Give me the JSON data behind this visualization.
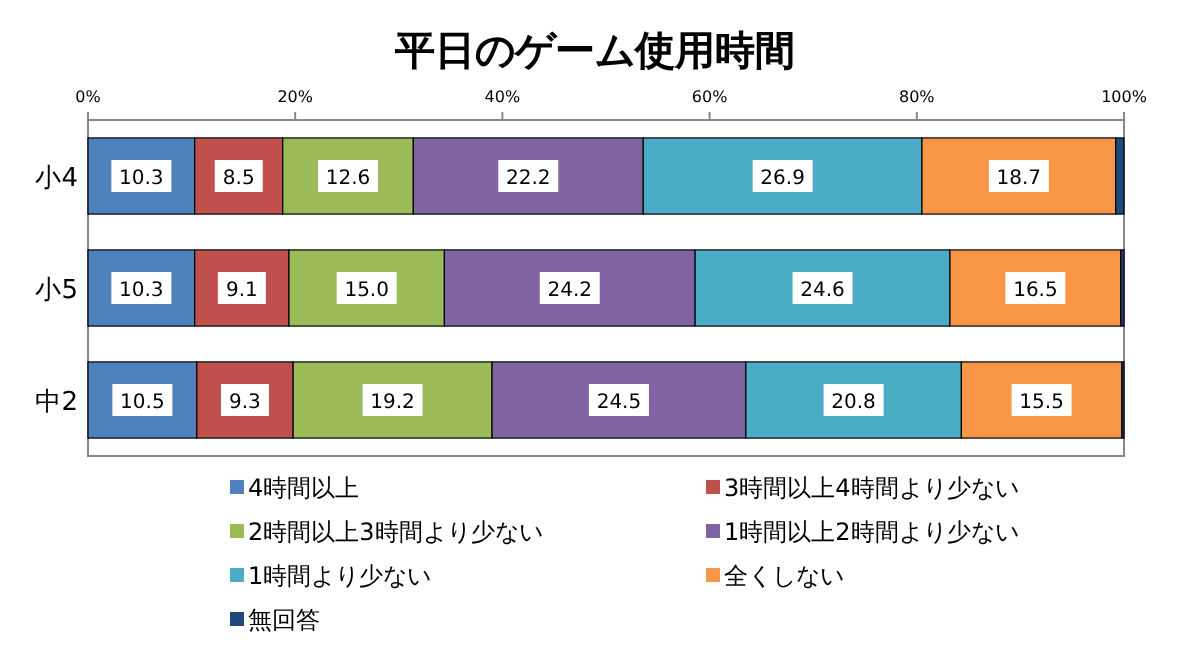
{
  "chart_data": {
    "type": "bar",
    "title": "平日のゲーム使用時間",
    "orientation": "horizontal",
    "stacked": true,
    "legend": "bottom",
    "categories": [
      "小4",
      "小5",
      "中2"
    ],
    "xlim": [
      0,
      100
    ],
    "xticks": [
      {
        "value": 0,
        "label": "0%"
      },
      {
        "value": 20,
        "label": "20%"
      },
      {
        "value": 40,
        "label": "40%"
      },
      {
        "value": 60,
        "label": "60%"
      },
      {
        "value": 80,
        "label": "80%"
      },
      {
        "value": 100,
        "label": "100%"
      }
    ],
    "series": [
      {
        "name": "4時間以上",
        "color": "#4f81bd",
        "values": [
          10.3,
          10.3,
          10.5
        ],
        "value_labels": [
          "10.3",
          "10.3",
          "10.5"
        ]
      },
      {
        "name": "3時間以上4時間より少ない",
        "color": "#c0504d",
        "values": [
          8.5,
          9.1,
          9.3
        ],
        "value_labels": [
          "8.5",
          "9.1",
          "9.3"
        ]
      },
      {
        "name": "2時間以上3時間より少ない",
        "color": "#9bbb59",
        "values": [
          12.6,
          15.0,
          19.2
        ],
        "value_labels": [
          "12.6",
          "15.0",
          "19.2"
        ]
      },
      {
        "name": "1時間以上2時間より少ない",
        "color": "#8064a2",
        "values": [
          22.2,
          24.2,
          24.5
        ],
        "value_labels": [
          "22.2",
          "24.2",
          "24.5"
        ]
      },
      {
        "name": "1時間より少ない",
        "color": "#4bacc6",
        "values": [
          26.9,
          24.6,
          20.8
        ],
        "value_labels": [
          "26.9",
          "24.6",
          "20.8"
        ]
      },
      {
        "name": "全くしない",
        "color": "#f79646",
        "values": [
          18.7,
          16.5,
          15.5
        ],
        "value_labels": [
          "18.7",
          "16.5",
          "15.5"
        ]
      },
      {
        "name": "無回答",
        "color": "#1f497d",
        "values": [
          0.8,
          0.3,
          0.2
        ],
        "value_labels": [
          null,
          null,
          null
        ]
      }
    ]
  }
}
